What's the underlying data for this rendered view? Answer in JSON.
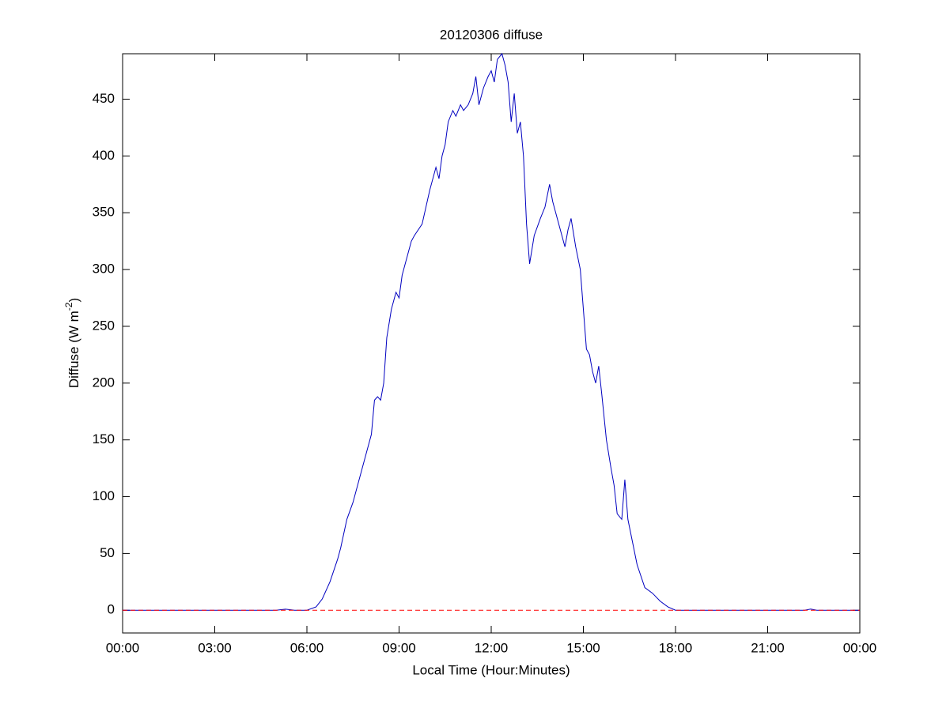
{
  "chart_data": {
    "type": "line",
    "title": "20120306 diffuse",
    "xlabel": "Local Time (Hour:Minutes)",
    "ylabel": {
      "text": "Diffuse (W m",
      "superscript": "-2",
      "suffix": ")"
    },
    "xlim": [
      0,
      24
    ],
    "ylim": [
      -20,
      490
    ],
    "xticks": [
      {
        "value": 0,
        "label": "00:00"
      },
      {
        "value": 3,
        "label": "03:00"
      },
      {
        "value": 6,
        "label": "06:00"
      },
      {
        "value": 9,
        "label": "09:00"
      },
      {
        "value": 12,
        "label": "12:00"
      },
      {
        "value": 15,
        "label": "15:00"
      },
      {
        "value": 18,
        "label": "18:00"
      },
      {
        "value": 21,
        "label": "21:00"
      },
      {
        "value": 24,
        "label": "00:00"
      }
    ],
    "yticks": [
      0,
      50,
      100,
      150,
      200,
      250,
      300,
      350,
      400,
      450
    ],
    "reference_line": {
      "value": 0,
      "color": "#ff0000",
      "dashed": true
    },
    "series": [
      {
        "color": "#0000c0",
        "x": [
          0,
          2,
          4,
          5,
          5.3,
          5.6,
          6,
          6.3,
          6.5,
          6.75,
          7,
          7.1,
          7.3,
          7.5,
          7.75,
          8,
          8.1,
          8.2,
          8.3,
          8.4,
          8.5,
          8.6,
          8.75,
          8.9,
          9,
          9.1,
          9.3,
          9.4,
          9.5,
          9.75,
          10,
          10.2,
          10.3,
          10.4,
          10.5,
          10.6,
          10.75,
          10.85,
          11,
          11.1,
          11.25,
          11.4,
          11.5,
          11.6,
          11.75,
          11.9,
          12,
          12.1,
          12.2,
          12.35,
          12.45,
          12.55,
          12.65,
          12.75,
          12.85,
          12.95,
          13.05,
          13.15,
          13.25,
          13.4,
          13.6,
          13.75,
          13.9,
          14,
          14.1,
          14.2,
          14.3,
          14.4,
          14.5,
          14.6,
          14.75,
          14.9,
          15,
          15.1,
          15.2,
          15.3,
          15.4,
          15.5,
          15.6,
          15.75,
          15.9,
          16,
          16.1,
          16.25,
          16.35,
          16.45,
          16.6,
          16.75,
          17,
          17.25,
          17.5,
          17.75,
          18,
          19,
          21,
          22.2,
          22.4,
          22.6,
          23,
          24
        ],
        "values": [
          0,
          0,
          0,
          0,
          1,
          0,
          0,
          3,
          10,
          25,
          45,
          55,
          80,
          95,
          120,
          145,
          155,
          185,
          188,
          185,
          200,
          240,
          265,
          280,
          275,
          295,
          315,
          325,
          330,
          340,
          370,
          390,
          380,
          400,
          410,
          430,
          440,
          435,
          445,
          440,
          445,
          455,
          470,
          445,
          460,
          470,
          475,
          465,
          485,
          490,
          480,
          465,
          430,
          455,
          420,
          430,
          400,
          340,
          305,
          330,
          345,
          355,
          375,
          360,
          350,
          340,
          330,
          320,
          335,
          345,
          320,
          300,
          265,
          230,
          225,
          210,
          200,
          215,
          190,
          150,
          125,
          110,
          85,
          80,
          115,
          80,
          60,
          40,
          20,
          15,
          8,
          3,
          0,
          0,
          0,
          0,
          1,
          0,
          0,
          0
        ]
      }
    ]
  }
}
